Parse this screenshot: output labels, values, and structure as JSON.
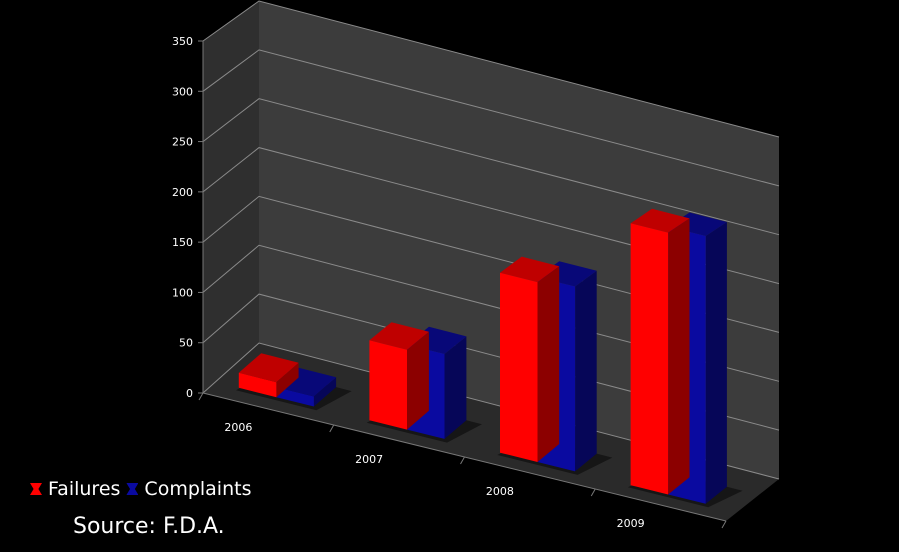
{
  "chart_data": {
    "type": "bar",
    "title": "",
    "xlabel": "",
    "ylabel": "",
    "categories": [
      "2006",
      "2007",
      "2008",
      "2009"
    ],
    "series": [
      {
        "name": "Failures",
        "values": [
          15,
          80,
          180,
          262
        ],
        "color": "#ff0000"
      },
      {
        "name": "Complaints",
        "values": [
          10,
          85,
          185,
          268
        ],
        "color": "#0a0aa0"
      }
    ],
    "ylim": [
      0,
      350
    ],
    "yticks": [
      "0",
      "50",
      "100",
      "150",
      "200",
      "250",
      "300",
      "350"
    ],
    "grid": true,
    "legend_position": "bottom-left",
    "style": "3d-clustered"
  },
  "source": "Source: F.D.A.",
  "colors": {
    "background": "#000000",
    "wall": "#3c3c3c",
    "floor": "#2a2a2a",
    "grid": "#8a8a8a"
  }
}
